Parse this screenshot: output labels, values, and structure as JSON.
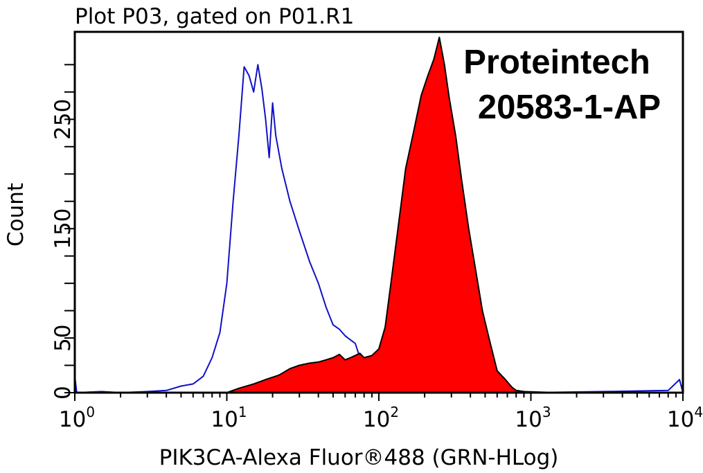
{
  "chart_data": {
    "type": "area",
    "title": "Plot P03, gated on P01.R1",
    "xlabel": "PIK3CA-Alexa Fluor®488 (GRN-HLog)",
    "ylabel": "Count",
    "xscale": "log",
    "xlim": [
      1,
      10000
    ],
    "ylim": [
      0,
      330
    ],
    "x_ticks": [
      {
        "base": "10",
        "exp": "0",
        "value": 1
      },
      {
        "base": "10",
        "exp": "1",
        "value": 10
      },
      {
        "base": "10",
        "exp": "2",
        "value": 100
      },
      {
        "base": "10",
        "exp": "3",
        "value": 1000
      },
      {
        "base": "10",
        "exp": "4",
        "value": 10000
      }
    ],
    "y_tick_labels": [
      {
        "label": "0",
        "value": 0
      },
      {
        "label": "50",
        "value": 50
      },
      {
        "label": "150",
        "value": 150
      },
      {
        "label": "250",
        "value": 250
      }
    ],
    "y_minor_ticks": [
      0,
      25,
      50,
      75,
      100,
      125,
      150,
      175,
      200,
      225,
      250,
      275,
      300
    ],
    "annotations": [
      "Proteintech",
      "20583-1-AP"
    ],
    "series": [
      {
        "kind": "outline",
        "color": "#1010c8",
        "points": [
          [
            1.0,
            15
          ],
          [
            1.03,
            0
          ],
          [
            1.5,
            1
          ],
          [
            2,
            0
          ],
          [
            3,
            1
          ],
          [
            4,
            2
          ],
          [
            5,
            6
          ],
          [
            6,
            8
          ],
          [
            7,
            15
          ],
          [
            8,
            32
          ],
          [
            9,
            55
          ],
          [
            10,
            100
          ],
          [
            11,
            175
          ],
          [
            12,
            235
          ],
          [
            13,
            298
          ],
          [
            14,
            290
          ],
          [
            15,
            275
          ],
          [
            16,
            300
          ],
          [
            17,
            278
          ],
          [
            18,
            250
          ],
          [
            19,
            215
          ],
          [
            20,
            265
          ],
          [
            21,
            235
          ],
          [
            23,
            205
          ],
          [
            26,
            175
          ],
          [
            30,
            148
          ],
          [
            35,
            120
          ],
          [
            40,
            100
          ],
          [
            45,
            78
          ],
          [
            50,
            62
          ],
          [
            55,
            58
          ],
          [
            60,
            52
          ],
          [
            70,
            45
          ],
          [
            80,
            20
          ],
          [
            90,
            18
          ],
          [
            100,
            12
          ],
          [
            110,
            10
          ],
          [
            120,
            8
          ],
          [
            150,
            4
          ],
          [
            200,
            2
          ],
          [
            300,
            1
          ],
          [
            600,
            1
          ],
          [
            1000,
            0
          ],
          [
            3000,
            1
          ],
          [
            8000,
            2
          ],
          [
            9500,
            12
          ],
          [
            10000,
            0
          ]
        ]
      },
      {
        "kind": "filled",
        "color": "#ff0000",
        "points": [
          [
            10,
            0
          ],
          [
            12,
            4
          ],
          [
            15,
            8
          ],
          [
            18,
            12
          ],
          [
            22,
            16
          ],
          [
            26,
            22
          ],
          [
            30,
            25
          ],
          [
            35,
            27
          ],
          [
            40,
            28
          ],
          [
            45,
            30
          ],
          [
            50,
            32
          ],
          [
            55,
            35
          ],
          [
            60,
            30
          ],
          [
            65,
            32
          ],
          [
            70,
            34
          ],
          [
            75,
            36
          ],
          [
            80,
            32
          ],
          [
            90,
            34
          ],
          [
            100,
            40
          ],
          [
            110,
            60
          ],
          [
            120,
            100
          ],
          [
            135,
            155
          ],
          [
            150,
            205
          ],
          [
            170,
            240
          ],
          [
            190,
            272
          ],
          [
            210,
            290
          ],
          [
            230,
            305
          ],
          [
            250,
            325
          ],
          [
            270,
            300
          ],
          [
            290,
            270
          ],
          [
            320,
            235
          ],
          [
            350,
            195
          ],
          [
            390,
            150
          ],
          [
            430,
            115
          ],
          [
            480,
            75
          ],
          [
            530,
            50
          ],
          [
            600,
            20
          ],
          [
            680,
            12
          ],
          [
            750,
            5
          ],
          [
            800,
            2
          ],
          [
            900,
            1
          ],
          [
            1500,
            0
          ]
        ]
      }
    ],
    "grid": false,
    "legend": "none"
  }
}
